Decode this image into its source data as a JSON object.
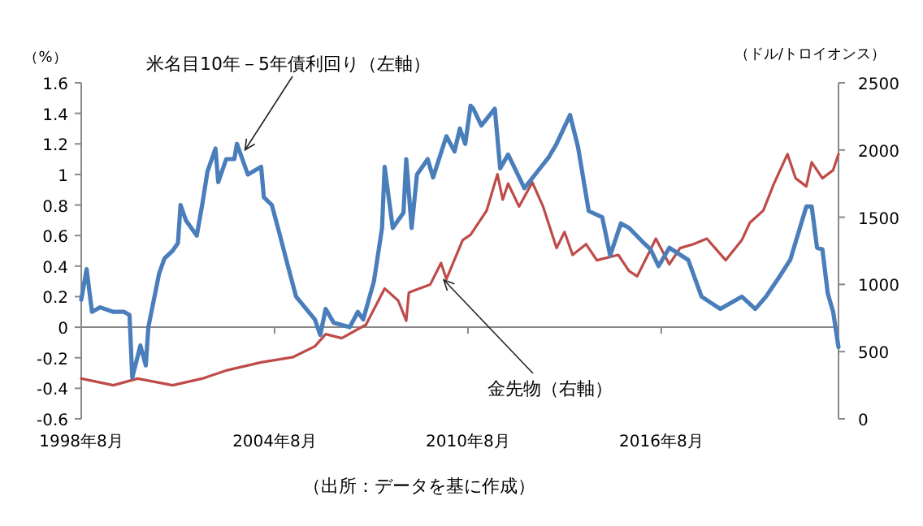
{
  "chart_data": {
    "type": "line",
    "ylabel": "（%）",
    "y2label": "（ドル/トロイオンス）",
    "xlim": [
      "1998-08",
      "2022-02"
    ],
    "xticks": [
      {
        "value": "1998-08",
        "label": "1998年8月"
      },
      {
        "value": "2004-08",
        "label": "2004年8月"
      },
      {
        "value": "2010-08",
        "label": "2010年8月"
      },
      {
        "value": "2016-08",
        "label": "2016年8月"
      }
    ],
    "ylim": [
      -0.6,
      1.6
    ],
    "yticks": [
      -0.6,
      -0.4,
      -0.2,
      0,
      0.2,
      0.4,
      0.6,
      0.8,
      1,
      1.2,
      1.4,
      1.6
    ],
    "y2lim": [
      0,
      2500
    ],
    "y2ticks": [
      0,
      500,
      1000,
      1500,
      2000,
      2500
    ],
    "series": [
      {
        "color": "#4a7ebb",
        "x": [
          "1998-08",
          "1998-10",
          "1998-12",
          "1999-03",
          "1999-08",
          "1999-12",
          "2000-02",
          "2000-03",
          "2000-06",
          "2000-08",
          "2000-09",
          "2001-01",
          "2001-03",
          "2001-06",
          "2001-08",
          "2001-09",
          "2001-11",
          "2002-03",
          "2002-05",
          "2002-07",
          "2002-10",
          "2002-11",
          "2003-02",
          "2003-05",
          "2003-06",
          "2003-10",
          "2004-03",
          "2004-04",
          "2004-07",
          "2004-10",
          "2005-01",
          "2005-04",
          "2005-11",
          "2006-01",
          "2006-03",
          "2006-06",
          "2006-12",
          "2007-03",
          "2007-05",
          "2007-09",
          "2007-12",
          "2008-01",
          "2008-04",
          "2008-08",
          "2008-09",
          "2008-11",
          "2009-01",
          "2009-05",
          "2009-07",
          "2009-12",
          "2010-03",
          "2010-05",
          "2010-07",
          "2010-09",
          "2010-10",
          "2011-01",
          "2011-06",
          "2011-08",
          "2011-11",
          "2012-05",
          "2012-09",
          "2013-02",
          "2013-05",
          "2013-10",
          "2014-01",
          "2014-05",
          "2014-10",
          "2015-01",
          "2015-05",
          "2015-08",
          "2016-01",
          "2016-04",
          "2016-07",
          "2016-11",
          "2017-06",
          "2017-11",
          "2018-06",
          "2019-02",
          "2019-07",
          "2019-11",
          "2020-04",
          "2020-08",
          "2021-02",
          "2021-04",
          "2021-06",
          "2021-08",
          "2021-10",
          "2021-12",
          "2022-02"
        ],
        "values": [
          0.18,
          0.38,
          0.1,
          0.13,
          0.1,
          0.1,
          0.08,
          -0.33,
          -0.12,
          -0.25,
          0,
          0.35,
          0.45,
          0.5,
          0.55,
          0.8,
          0.7,
          0.6,
          0.8,
          1.02,
          1.17,
          0.95,
          1.1,
          1.1,
          1.2,
          1.0,
          1.05,
          0.85,
          0.8,
          0.6,
          0.4,
          0.2,
          0.05,
          -0.05,
          0.12,
          0.03,
          0,
          0.1,
          0.05,
          0.3,
          0.65,
          1.05,
          0.65,
          0.75,
          1.1,
          0.65,
          1.0,
          1.1,
          0.98,
          1.25,
          1.15,
          1.3,
          1.2,
          1.45,
          1.43,
          1.32,
          1.43,
          1.04,
          1.13,
          0.91,
          1.0,
          1.11,
          1.2,
          1.39,
          1.18,
          0.76,
          0.72,
          0.47,
          0.68,
          0.65,
          0.56,
          0.51,
          0.4,
          0.52,
          0.44,
          0.2,
          0.12,
          0.2,
          0.12,
          0.2,
          0.33,
          0.44,
          0.79,
          0.79,
          0.52,
          0.51,
          0.22,
          0.1,
          -0.13
        ]
      },
      {
        "color": "#be4b48",
        "axis": "y2",
        "x": [
          "1998-08",
          "1999-08",
          "2000-05",
          "2001-06",
          "2002-05",
          "2003-02",
          "2004-03",
          "2005-03",
          "2005-11",
          "2006-03",
          "2006-09",
          "2007-06",
          "2008-01",
          "2008-06",
          "2008-09",
          "2008-10",
          "2009-06",
          "2009-10",
          "2009-12",
          "2010-06",
          "2010-09",
          "2011-03",
          "2011-07",
          "2011-09",
          "2011-11",
          "2012-03",
          "2012-08",
          "2012-12",
          "2013-05",
          "2013-08",
          "2013-11",
          "2014-04",
          "2014-08",
          "2015-04",
          "2015-08",
          "2015-11",
          "2016-03",
          "2016-06",
          "2016-11",
          "2017-03",
          "2017-08",
          "2018-01",
          "2018-08",
          "2019-02",
          "2019-05",
          "2019-10",
          "2020-02",
          "2020-07",
          "2020-10",
          "2021-02",
          "2021-04",
          "2021-08",
          "2021-12",
          "2022-02"
        ],
        "values": [
          300,
          250,
          300,
          250,
          300,
          360,
          420,
          460,
          540,
          630,
          600,
          700,
          970,
          880,
          730,
          940,
          1000,
          1160,
          1040,
          1330,
          1370,
          1550,
          1820,
          1630,
          1750,
          1580,
          1760,
          1580,
          1270,
          1390,
          1220,
          1300,
          1180,
          1220,
          1100,
          1060,
          1220,
          1340,
          1150,
          1270,
          1300,
          1340,
          1180,
          1330,
          1460,
          1550,
          1750,
          1970,
          1790,
          1730,
          1910,
          1790,
          1850,
          1970
        ]
      }
    ],
    "annotations": [
      {
        "text": "米名目10年－5年債利回り（左軸）",
        "x": "2003-09",
        "y": 1.16
      },
      {
        "text": "金先物（右軸）",
        "x": "2009-11",
        "y": 0.31
      },
      "（出所：データを基に作成）"
    ]
  }
}
